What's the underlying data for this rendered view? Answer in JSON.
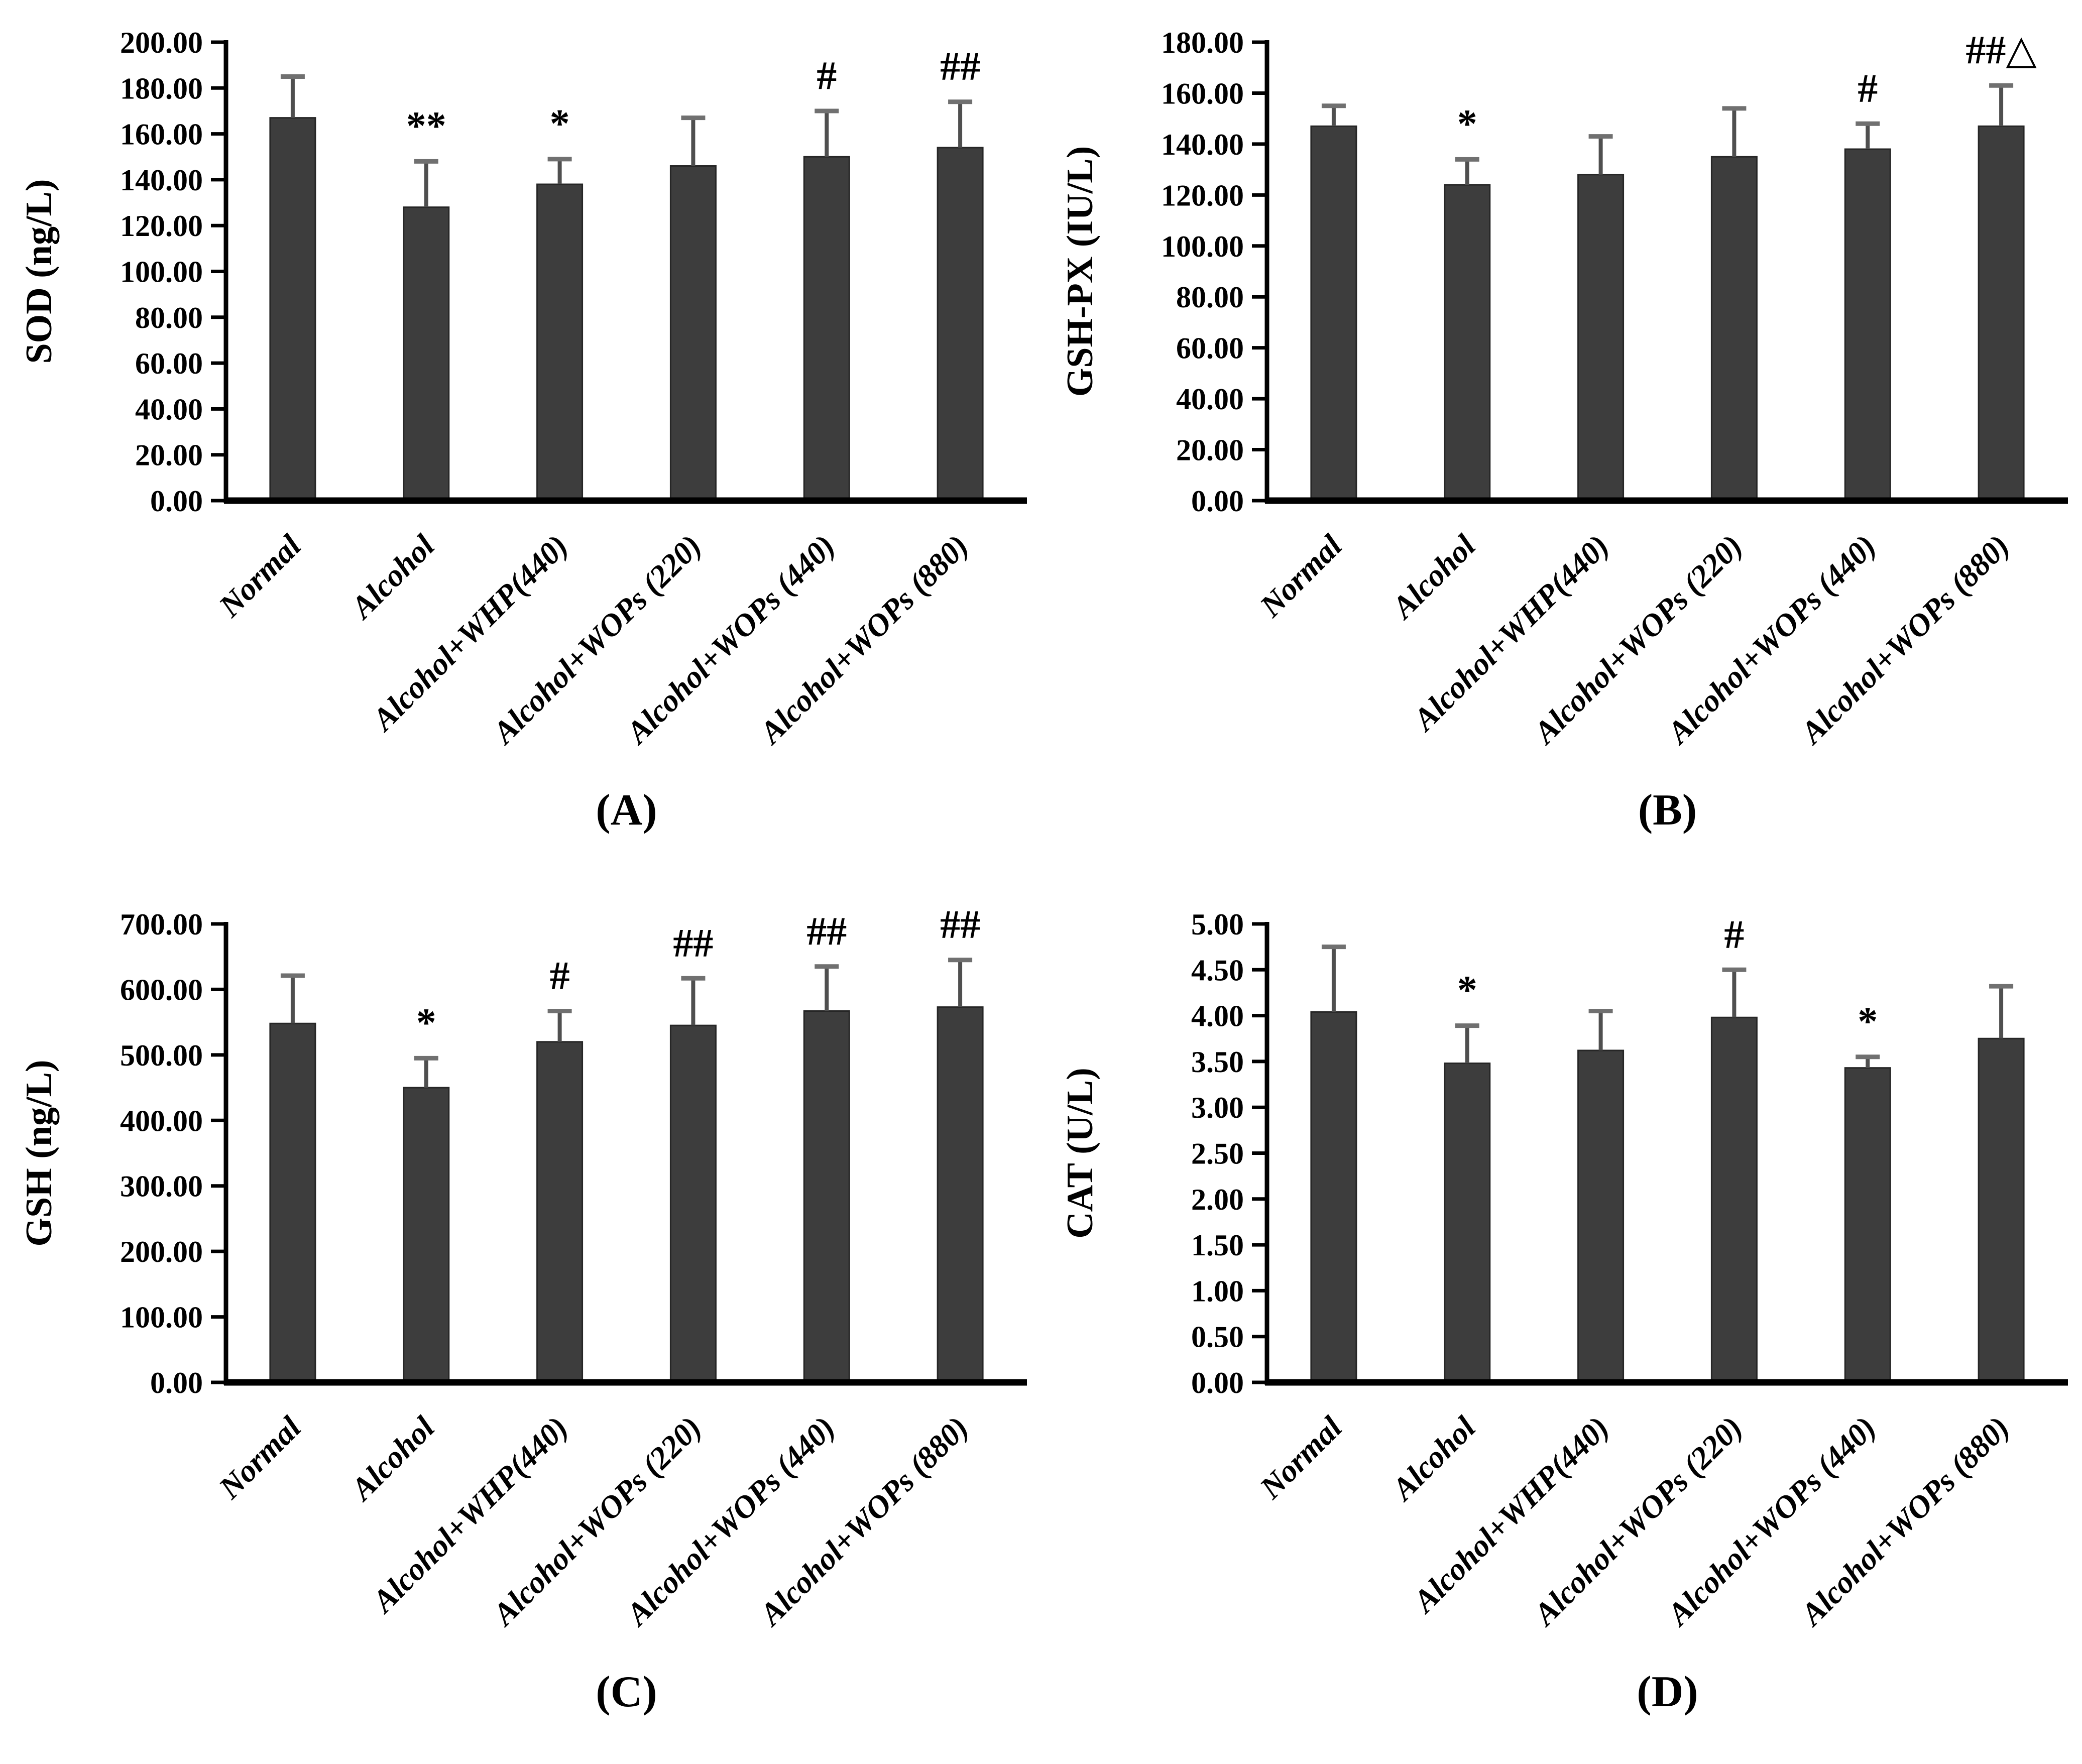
{
  "figure": {
    "background_color": "#ffffff",
    "bar_color": "#3d3d3d",
    "bar_edge_color": "#262626",
    "axis_color": "#000000",
    "error_stem_color": "#4f4f4f",
    "error_cap_color": "#707070",
    "text_color": "#000000"
  },
  "chart_data": [
    {
      "id": "A",
      "type": "bar",
      "panel_label": "(A)",
      "ylabel": "SOD (ng/L)",
      "xlabel": "",
      "ylim": [
        0,
        200
      ],
      "ytick_step": 20,
      "tick_decimals": 2,
      "grid": false,
      "legend": false,
      "categories": [
        "Normal",
        "Alcohol",
        "Alcohol+WHP(440)",
        "Alcohol+WOPs (220)",
        "Alcohol+WOPs (440)",
        "Alcohol+WOPs (880)"
      ],
      "values": [
        167,
        128,
        138,
        146,
        150,
        154
      ],
      "errors": [
        18,
        20,
        11,
        21,
        20,
        20
      ],
      "annotations": [
        "",
        "**",
        "*",
        "",
        "#",
        "##"
      ]
    },
    {
      "id": "B",
      "type": "bar",
      "panel_label": "(B)",
      "ylabel": "GSH-PX (IU/L)",
      "xlabel": "",
      "ylim": [
        0,
        180
      ],
      "ytick_step": 20,
      "tick_decimals": 2,
      "grid": false,
      "legend": false,
      "categories": [
        "Normal",
        "Alcohol",
        "Alcohol+WHP(440)",
        "Alcohol+WOPs (220)",
        "Alcohol+WOPs (440)",
        "Alcohol+WOPs (880)"
      ],
      "values": [
        147,
        124,
        128,
        135,
        138,
        147
      ],
      "errors": [
        8,
        10,
        15,
        19,
        10,
        16
      ],
      "annotations": [
        "",
        "*",
        "",
        "",
        "#",
        "##△"
      ]
    },
    {
      "id": "C",
      "type": "bar",
      "panel_label": "(C)",
      "ylabel": "GSH (ng/L)",
      "xlabel": "",
      "ylim": [
        0,
        700
      ],
      "ytick_step": 100,
      "tick_decimals": 2,
      "grid": false,
      "legend": false,
      "categories": [
        "Normal",
        "Alcohol",
        "Alcohol+WHP(440)",
        "Alcohol+WOPs (220)",
        "Alcohol+WOPs (440)",
        "Alcohol+WOPs (880)"
      ],
      "values": [
        548,
        450,
        520,
        545,
        567,
        573
      ],
      "errors": [
        73,
        45,
        47,
        72,
        68,
        72
      ],
      "annotations": [
        "",
        "*",
        "#",
        "##",
        "##",
        "##"
      ]
    },
    {
      "id": "D",
      "type": "bar",
      "panel_label": "(D)",
      "ylabel": "CAT (U/L)",
      "xlabel": "",
      "ylim": [
        0,
        5
      ],
      "ytick_step": 0.5,
      "tick_decimals": 2,
      "grid": false,
      "legend": false,
      "categories": [
        "Normal",
        "Alcohol",
        "Alcohol+WHP(440)",
        "Alcohol+WOPs (220)",
        "Alcohol+WOPs (440)",
        "Alcohol+WOPs (880)"
      ],
      "values": [
        4.04,
        3.48,
        3.62,
        3.98,
        3.43,
        3.75
      ],
      "errors": [
        0.71,
        0.41,
        0.43,
        0.52,
        0.12,
        0.57
      ],
      "annotations": [
        "",
        "*",
        "",
        "#",
        "*",
        ""
      ]
    }
  ]
}
